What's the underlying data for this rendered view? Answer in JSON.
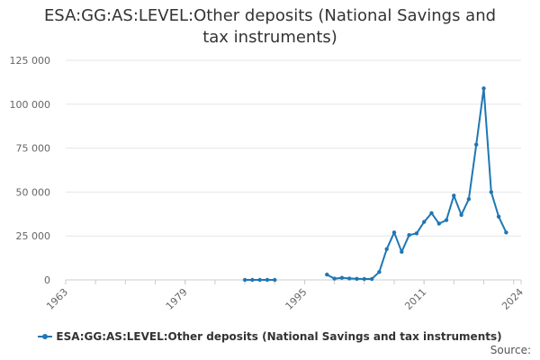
{
  "chart_data": {
    "type": "line",
    "title": "ESA:GG:AS:LEVEL:Other deposits (National Savings and tax instruments)",
    "xlim": [
      1963,
      2024
    ],
    "ylim": [
      0,
      125000
    ],
    "x_ticks": [
      "1963",
      "1979",
      "1995",
      "2011",
      "2024"
    ],
    "y_ticks": [
      "0",
      "25 000",
      "50 000",
      "75 000",
      "100 000",
      "125 000"
    ],
    "grid": "horizontal",
    "legend_position": "bottom",
    "colors": {
      "series": "#1f77b4",
      "grid": "#e6e6e6",
      "axis": "#cccccc"
    },
    "series": [
      {
        "name": "ESA:GG:AS:LEVEL:Other deposits (National Savings and tax instruments)",
        "points": [
          [
            1987,
            0
          ],
          [
            1988,
            0
          ],
          [
            1989,
            0
          ],
          [
            1990,
            0
          ],
          [
            1991,
            0
          ],
          [
            1992,
            null
          ],
          [
            1993,
            null
          ],
          [
            1994,
            null
          ],
          [
            1995,
            null
          ],
          [
            1996,
            null
          ],
          [
            1997,
            null
          ],
          [
            1998,
            3000
          ],
          [
            1999,
            700
          ],
          [
            2000,
            1200
          ],
          [
            2001,
            800
          ],
          [
            2002,
            600
          ],
          [
            2003,
            500
          ],
          [
            2004,
            500
          ],
          [
            2005,
            4500
          ],
          [
            2006,
            17500
          ],
          [
            2007,
            27000
          ],
          [
            2008,
            16000
          ],
          [
            2009,
            25500
          ],
          [
            2010,
            26500
          ],
          [
            2011,
            33000
          ],
          [
            2012,
            38000
          ],
          [
            2013,
            32000
          ],
          [
            2014,
            34000
          ],
          [
            2015,
            48000
          ],
          [
            2016,
            37000
          ],
          [
            2017,
            46000
          ],
          [
            2018,
            77000
          ],
          [
            2019,
            109000
          ],
          [
            2020,
            50000
          ],
          [
            2021,
            36000
          ],
          [
            2022,
            27000
          ]
        ]
      }
    ]
  },
  "legend": {
    "label": "ESA:GG:AS:LEVEL:Other deposits (National Savings and tax instruments)"
  },
  "source": {
    "label": "Source:"
  }
}
